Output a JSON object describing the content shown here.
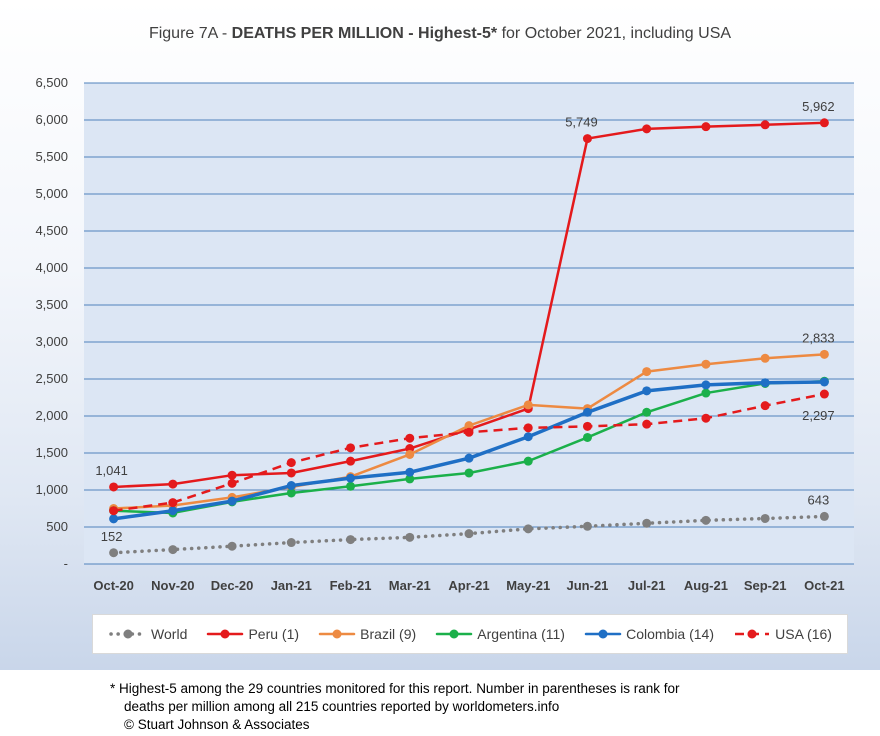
{
  "chart_data": {
    "type": "line",
    "title_prefix": "Figure 7A - ",
    "title_bold": "DEATHS PER MILLION - Highest-5*",
    "title_suffix": " for October 2021, including USA",
    "categories": [
      "Oct-20",
      "Nov-20",
      "Dec-20",
      "Jan-21",
      "Feb-21",
      "Mar-21",
      "Apr-21",
      "May-21",
      "Jun-21",
      "Jul-21",
      "Aug-21",
      "Sep-21",
      "Oct-21"
    ],
    "y_ticks": [
      "-",
      "500",
      "1,000",
      "1,500",
      "2,000",
      "2,500",
      "3,000",
      "3,500",
      "4,000",
      "4,500",
      "5,000",
      "5,500",
      "6,000",
      "6,500"
    ],
    "ylim": [
      0,
      6500
    ],
    "grid": true,
    "legend_position": "bottom",
    "series": [
      {
        "name": "World",
        "color": "#7f7f7f",
        "style": "dotted",
        "values": [
          152,
          195,
          240,
          290,
          330,
          360,
          410,
          475,
          510,
          550,
          590,
          615,
          643
        ]
      },
      {
        "name": "Peru (1)",
        "color": "#e41a1c",
        "style": "solid",
        "values": [
          1041,
          1080,
          1200,
          1230,
          1390,
          1560,
          1820,
          2100,
          5749,
          5880,
          5910,
          5935,
          5962
        ]
      },
      {
        "name": "Brazil (9)",
        "color": "#ed8a42",
        "style": "solid",
        "values": [
          750,
          790,
          900,
          1040,
          1180,
          1480,
          1870,
          2150,
          2100,
          2600,
          2700,
          2780,
          2833
        ]
      },
      {
        "name": "Argentina (11)",
        "color": "#1bb04a",
        "style": "solid",
        "values": [
          720,
          690,
          840,
          960,
          1050,
          1150,
          1230,
          1390,
          1710,
          2050,
          2310,
          2440,
          2470
        ]
      },
      {
        "name": "Colombia (14)",
        "color": "#1f6fc5",
        "style": "solid",
        "values": [
          610,
          720,
          850,
          1060,
          1160,
          1240,
          1430,
          1720,
          2050,
          2340,
          2420,
          2450,
          2460
        ]
      },
      {
        "name": "USA (16)",
        "color": "#e41a1c",
        "style": "dashed",
        "values": [
          720,
          830,
          1090,
          1370,
          1570,
          1700,
          1780,
          1840,
          1860,
          1890,
          1970,
          2140,
          2297
        ]
      }
    ],
    "annotations": [
      {
        "text": "1,041",
        "series": 1,
        "index": 0,
        "pos": "above"
      },
      {
        "text": "5,749",
        "series": 1,
        "index": 8,
        "pos": "above"
      },
      {
        "text": "5,962",
        "series": 1,
        "index": 12,
        "pos": "above"
      },
      {
        "text": "2,833",
        "series": 2,
        "index": 12,
        "pos": "above"
      },
      {
        "text": "2,297",
        "series": 5,
        "index": 12,
        "pos": "below"
      },
      {
        "text": "152",
        "series": 0,
        "index": 0,
        "pos": "above"
      },
      {
        "text": "643",
        "series": 0,
        "index": 12,
        "pos": "above"
      }
    ]
  },
  "footnote": {
    "line1": "* Highest-5 among the 29 countries monitored for this report. Number in parentheses is rank for",
    "line2": "deaths per million among all 215 countries reported by worldometers.info",
    "line3": "© Stuart Johnson & Associates"
  }
}
